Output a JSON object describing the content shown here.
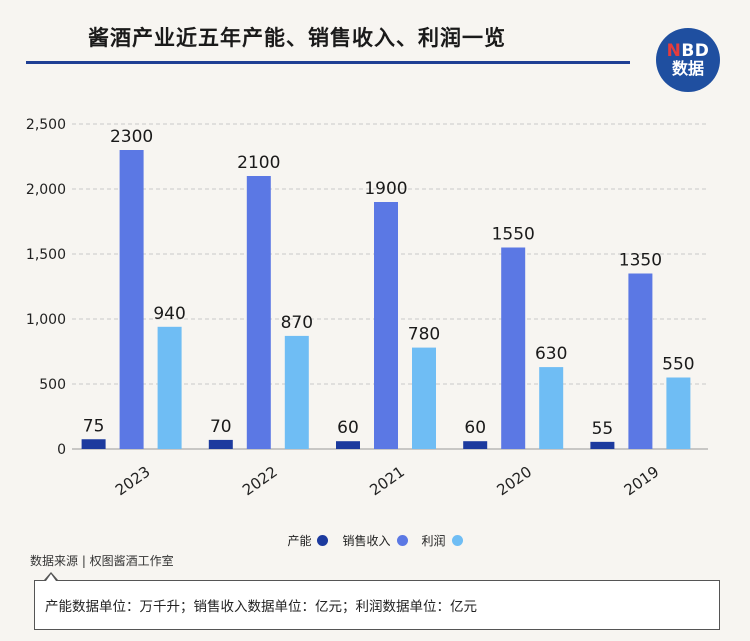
{
  "header": {
    "title": "酱酒产业近五年产能、销售收入、利润一览",
    "logo_top": "NBD",
    "logo_top_first": "N",
    "logo_top_rest": "BD",
    "logo_bottom": "数据"
  },
  "chart_data": {
    "type": "bar",
    "categories": [
      "2023",
      "2022",
      "2021",
      "2020",
      "2019"
    ],
    "series": [
      {
        "name": "产能",
        "values": [
          75,
          70,
          60,
          60,
          55
        ],
        "color": "#1c3a9e"
      },
      {
        "name": "销售收入",
        "values": [
          2300,
          2100,
          1900,
          1550,
          1350
        ],
        "color": "#5b78e4"
      },
      {
        "name": "利润",
        "values": [
          940,
          870,
          780,
          630,
          550
        ],
        "color": "#6fbdf4"
      }
    ],
    "ylim": [
      0,
      2500
    ],
    "yticks": [
      0,
      500,
      1000,
      1500,
      2000,
      2500
    ],
    "ytick_labels": [
      "0",
      "500",
      "1,000",
      "1,500",
      "2,000",
      "2,500"
    ],
    "grid": true,
    "legend": "bottom-center",
    "xlabel": "",
    "ylabel": ""
  },
  "footer": {
    "source": "数据来源 | 权图酱酒工作室",
    "note": "产能数据单位：万千升；销售收入数据单位：亿元；利润数据单位：亿元"
  }
}
